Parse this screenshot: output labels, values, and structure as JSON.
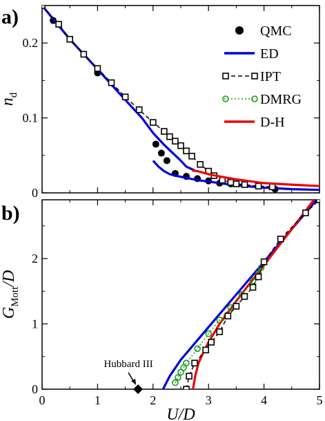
{
  "chart_data": [
    {
      "type": "scatter",
      "panel_label": "a)",
      "ylabel_main": "n",
      "ylabel_sub": "d",
      "xlim": [
        0,
        5
      ],
      "ylim": [
        0,
        0.25
      ],
      "xticks": [
        0,
        1,
        2,
        3,
        4,
        5
      ],
      "xtick_labels": [
        "",
        "",
        "",
        "",
        "",
        ""
      ],
      "yticks": [
        0,
        0.1,
        0.2
      ],
      "ytick_labels": [
        "0",
        "0.1",
        "0.2"
      ],
      "legend_position": "top-right",
      "series": [
        {
          "name": "QMC",
          "style": "filled-circles",
          "color": "#000000",
          "points": [
            [
              0.2,
              0.23
            ],
            [
              1.0,
              0.16
            ],
            [
              2.05,
              0.065
            ],
            [
              2.15,
              0.053
            ],
            [
              2.25,
              0.043
            ],
            [
              2.4,
              0.026
            ],
            [
              2.6,
              0.022
            ],
            [
              2.8,
              0.019
            ],
            [
              3.0,
              0.016
            ],
            [
              3.2,
              0.013
            ],
            [
              3.4,
              0.012
            ],
            [
              4.2,
              0.005
            ]
          ]
        },
        {
          "name": "ED",
          "style": "line",
          "color": "#0000dd",
          "points": [
            [
              0,
              0.25
            ],
            [
              0.5,
              0.205
            ],
            [
              1.0,
              0.165
            ],
            [
              1.5,
              0.124
            ],
            [
              1.8,
              0.1
            ],
            [
              2.0,
              0.08
            ],
            [
              2.2,
              0.064
            ],
            [
              2.4,
              0.05
            ],
            [
              2.5,
              0.043
            ],
            [
              2.6,
              0.035
            ],
            [
              2.75,
              0.03
            ]
          ]
        },
        {
          "name": "ED",
          "style": "line",
          "color": "#0000dd",
          "legend": false,
          "points": [
            [
              2.0,
              0.043
            ],
            [
              2.1,
              0.035
            ],
            [
              2.2,
              0.029
            ],
            [
              2.3,
              0.025
            ],
            [
              2.4,
              0.023
            ],
            [
              2.6,
              0.02
            ],
            [
              2.8,
              0.017
            ],
            [
              3.0,
              0.015
            ],
            [
              3.5,
              0.01
            ],
            [
              4.0,
              0.007
            ],
            [
              4.5,
              0.005
            ],
            [
              5.0,
              0.004
            ]
          ]
        },
        {
          "name": "IPT",
          "style": "dashed-open-squares",
          "color": "#000000",
          "points": [
            [
              0.0,
              0.25
            ],
            [
              0.3,
              0.225
            ],
            [
              0.5,
              0.205
            ],
            [
              0.75,
              0.185
            ],
            [
              1.0,
              0.166
            ],
            [
              1.25,
              0.147
            ],
            [
              1.5,
              0.128
            ],
            [
              1.75,
              0.111
            ],
            [
              2.0,
              0.094
            ],
            [
              2.2,
              0.082
            ],
            [
              2.3,
              0.075
            ],
            [
              2.4,
              0.069
            ],
            [
              2.5,
              0.063
            ],
            [
              2.6,
              0.056
            ],
            [
              2.7,
              0.049
            ],
            [
              2.85,
              0.038
            ],
            [
              3.0,
              0.029
            ],
            [
              3.1,
              0.023
            ],
            [
              3.25,
              0.017
            ],
            [
              3.4,
              0.014
            ],
            [
              3.5,
              0.012
            ],
            [
              3.65,
              0.011
            ],
            [
              3.9,
              0.009
            ],
            [
              4.15,
              0.008
            ]
          ]
        },
        {
          "name": "DMRG",
          "style": "dotted-open-circles",
          "color": "#1a9a1a",
          "points": []
        },
        {
          "name": "D-H",
          "style": "line",
          "color": "#ee0000",
          "points": [
            [
              2.7,
              0.03
            ],
            [
              2.8,
              0.029
            ],
            [
              3.0,
              0.025
            ],
            [
              3.2,
              0.022
            ],
            [
              3.5,
              0.018
            ],
            [
              4.0,
              0.013
            ],
            [
              4.5,
              0.011
            ],
            [
              5.0,
              0.009
            ]
          ]
        }
      ]
    },
    {
      "type": "line",
      "panel_label": "b)",
      "ylabel_main": "G",
      "ylabel_sub": "Mott",
      "ylabel_suffix": "/D",
      "xlabel": "U/D",
      "xlim": [
        0,
        5
      ],
      "ylim": [
        0,
        2.9
      ],
      "xticks": [
        0,
        1,
        2,
        3,
        4,
        5
      ],
      "xtick_labels": [
        "0",
        "1",
        "2",
        "3",
        "4",
        "5"
      ],
      "yticks": [
        0,
        1,
        2
      ],
      "ytick_labels": [
        "0",
        "1",
        "2"
      ],
      "annotation": {
        "text": "Hubbard III",
        "x": 1.73,
        "y": 0
      },
      "series": [
        {
          "name": "ED",
          "style": "line",
          "color": "#0000dd",
          "points": [
            [
              2.18,
              0.0
            ],
            [
              2.3,
              0.2
            ],
            [
              2.5,
              0.45
            ],
            [
              2.7,
              0.65
            ],
            [
              3.0,
              0.95
            ],
            [
              3.5,
              1.45
            ],
            [
              4.0,
              1.95
            ],
            [
              4.5,
              2.45
            ],
            [
              4.95,
              2.9
            ]
          ]
        },
        {
          "name": "D-H",
          "style": "line",
          "color": "#ee0000",
          "points": [
            [
              2.72,
              0.0
            ],
            [
              2.76,
              0.2
            ],
            [
              2.82,
              0.4
            ],
            [
              2.9,
              0.55
            ],
            [
              3.0,
              0.72
            ],
            [
              3.2,
              1.0
            ],
            [
              3.5,
              1.35
            ],
            [
              4.0,
              1.9
            ],
            [
              4.5,
              2.45
            ],
            [
              4.9,
              2.9
            ]
          ]
        },
        {
          "name": "DMRG",
          "style": "dotted-open-circles",
          "color": "#1a9a1a",
          "points": [
            [
              2.4,
              0.1
            ],
            [
              2.45,
              0.18
            ],
            [
              2.5,
              0.26
            ],
            [
              2.55,
              0.33
            ],
            [
              2.6,
              0.4
            ],
            [
              2.8,
              0.62
            ],
            [
              3.0,
              0.85
            ],
            [
              3.2,
              1.06
            ],
            [
              3.4,
              1.25
            ],
            [
              3.6,
              1.45
            ],
            [
              3.8,
              1.66
            ],
            [
              3.9,
              1.77
            ],
            [
              3.95,
              1.86
            ]
          ]
        },
        {
          "name": "IPT",
          "style": "dashed-open-squares",
          "color": "#000000",
          "points": [
            [
              2.6,
              0.0
            ],
            [
              2.65,
              0.2
            ],
            [
              2.75,
              0.4
            ],
            [
              2.95,
              0.6
            ],
            [
              3.05,
              0.72
            ],
            [
              3.2,
              0.88
            ],
            [
              3.35,
              1.12
            ],
            [
              3.5,
              1.27
            ],
            [
              3.65,
              1.42
            ],
            [
              3.8,
              1.56
            ],
            [
              3.9,
              1.72
            ],
            [
              4.0,
              1.95
            ],
            [
              4.3,
              2.3
            ],
            [
              4.75,
              2.7
            ],
            [
              5.0,
              2.9
            ]
          ]
        }
      ]
    }
  ]
}
